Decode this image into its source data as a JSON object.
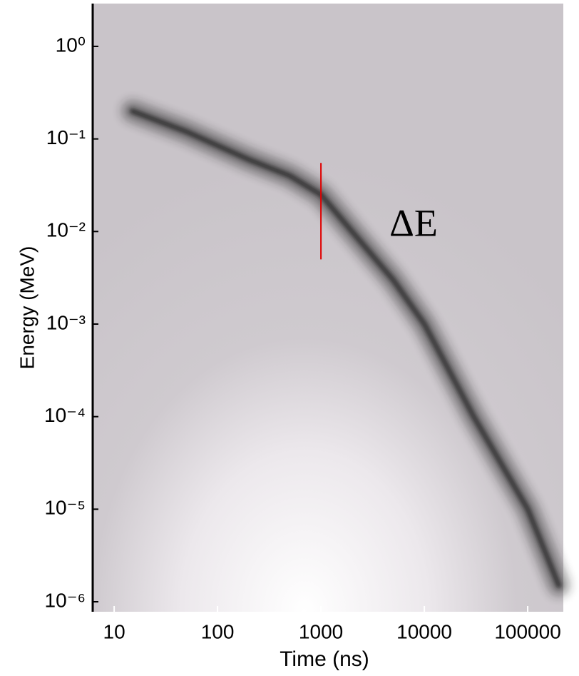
{
  "chart_data": {
    "type": "density",
    "xlabel": "Time (ns)",
    "ylabel": "Energy (MeV)",
    "xscale": "log",
    "yscale": "log",
    "xlim": [
      6.2,
      221000
    ],
    "ylim": [
      7.8e-07,
      2.9
    ],
    "xticks": [
      10,
      100,
      1000,
      10000,
      100000
    ],
    "yticks": [
      {
        "value": 1,
        "label": "10⁰"
      },
      {
        "value": 0.1,
        "label": "10⁻¹"
      },
      {
        "value": 0.01,
        "label": "10⁻²"
      },
      {
        "value": 0.001,
        "label": "10⁻³"
      },
      {
        "value": 0.0001,
        "label": "10⁻⁴"
      },
      {
        "value": 1e-05,
        "label": "10⁻⁵"
      },
      {
        "value": 1e-06,
        "label": "10⁻⁶"
      }
    ],
    "x": [
      15,
      50,
      200,
      500,
      1000,
      2000,
      5000,
      10000,
      30000,
      100000,
      200000
    ],
    "values": [
      0.2,
      0.12,
      0.06,
      0.04,
      0.025,
      0.01,
      0.003,
      0.001,
      0.0001,
      1e-05,
      1.5e-06
    ],
    "color": "#1a1a1a",
    "marker": {
      "x": 1000,
      "y": [
        0.005,
        0.055
      ],
      "color": "#e00000"
    },
    "annotation": "ΔE"
  }
}
